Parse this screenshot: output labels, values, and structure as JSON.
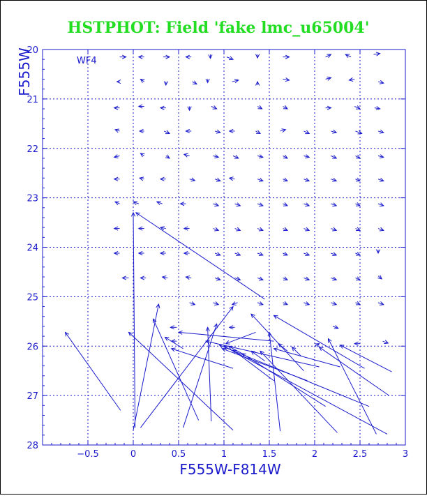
{
  "chart_data": {
    "type": "vector-field",
    "title": "HSTPHOT: Field 'fake lmc_u65004'",
    "xlabel": "F555W-F814W",
    "ylabel": "F555W",
    "panel_label": "WF4",
    "xlim": [
      -1.0,
      3.0
    ],
    "ylim": [
      28.0,
      20.0
    ],
    "y_inverted": true,
    "grid": true,
    "x_ticks": [
      -0.5,
      0,
      0.5,
      1,
      1.5,
      2,
      2.5,
      3
    ],
    "x_tick_labels": [
      "−0.5",
      "0",
      "0.5",
      "1",
      "1.5",
      "2",
      "2.5",
      "3"
    ],
    "y_ticks": [
      20,
      21,
      22,
      23,
      24,
      25,
      26,
      27,
      28
    ],
    "y_tick_labels": [
      "20",
      "21",
      "22",
      "23",
      "24",
      "25",
      "26",
      "27",
      "28"
    ],
    "colors": {
      "title": "#22dd22",
      "axes": "#1a1acc",
      "grid": "#1a1acc",
      "vectors": "#1a1acc",
      "background": "#ffffff"
    },
    "vectors_note": "each vector runs from the input (true) star to the recovered (measured) point; arrowhead at the recovered point",
    "vectors": [
      {
        "x0": -0.15,
        "y0": 20.15,
        "x1": -0.08,
        "y1": 20.15
      },
      {
        "x0": 0.12,
        "y0": 20.15,
        "x1": 0.06,
        "y1": 20.15
      },
      {
        "x0": 0.33,
        "y0": 20.15,
        "x1": 0.4,
        "y1": 20.15
      },
      {
        "x0": 0.64,
        "y0": 20.15,
        "x1": 0.58,
        "y1": 20.15
      },
      {
        "x0": 0.85,
        "y0": 20.1,
        "x1": 0.85,
        "y1": 20.18
      },
      {
        "x0": 1.03,
        "y0": 20.15,
        "x1": 1.1,
        "y1": 20.2
      },
      {
        "x0": 1.37,
        "y0": 20.1,
        "x1": 1.37,
        "y1": 20.17
      },
      {
        "x0": 1.65,
        "y0": 20.15,
        "x1": 1.72,
        "y1": 20.15
      },
      {
        "x0": 2.12,
        "y0": 20.15,
        "x1": 2.18,
        "y1": 20.1
      },
      {
        "x0": 2.4,
        "y0": 20.15,
        "x1": 2.34,
        "y1": 20.1
      },
      {
        "x0": 2.65,
        "y0": 20.1,
        "x1": 2.72,
        "y1": 20.08
      },
      {
        "x0": -0.15,
        "y0": 20.65,
        "x1": -0.18,
        "y1": 20.65
      },
      {
        "x0": 0.12,
        "y0": 20.65,
        "x1": 0.08,
        "y1": 20.6
      },
      {
        "x0": 0.36,
        "y0": 20.65,
        "x1": 0.36,
        "y1": 20.72
      },
      {
        "x0": 0.65,
        "y0": 20.65,
        "x1": 0.7,
        "y1": 20.7
      },
      {
        "x0": 0.82,
        "y0": 20.6,
        "x1": 0.82,
        "y1": 20.67
      },
      {
        "x0": 1.09,
        "y0": 20.65,
        "x1": 1.16,
        "y1": 20.62
      },
      {
        "x0": 1.37,
        "y0": 20.72,
        "x1": 1.37,
        "y1": 20.65
      },
      {
        "x0": 1.65,
        "y0": 20.6,
        "x1": 1.72,
        "y1": 20.62
      },
      {
        "x0": 2.12,
        "y0": 20.6,
        "x1": 2.18,
        "y1": 20.57
      },
      {
        "x0": 2.44,
        "y0": 20.6,
        "x1": 2.38,
        "y1": 20.62
      },
      {
        "x0": 2.7,
        "y0": 20.65,
        "x1": 2.76,
        "y1": 20.68
      },
      {
        "x0": -0.15,
        "y0": 21.18,
        "x1": -0.21,
        "y1": 21.18
      },
      {
        "x0": 0.12,
        "y0": 21.15,
        "x1": 0.06,
        "y1": 21.15
      },
      {
        "x0": 0.36,
        "y0": 21.18,
        "x1": 0.3,
        "y1": 21.18
      },
      {
        "x0": 0.62,
        "y0": 21.15,
        "x1": 0.62,
        "y1": 21.23
      },
      {
        "x0": 0.86,
        "y0": 21.15,
        "x1": 0.92,
        "y1": 21.2
      },
      {
        "x0": 1.37,
        "y0": 21.15,
        "x1": 1.42,
        "y1": 21.2
      },
      {
        "x0": 1.65,
        "y0": 21.15,
        "x1": 1.7,
        "y1": 21.2
      },
      {
        "x0": 2.12,
        "y0": 21.18,
        "x1": 2.18,
        "y1": 21.18
      },
      {
        "x0": 2.44,
        "y0": 21.15,
        "x1": 2.5,
        "y1": 21.2
      },
      {
        "x0": 2.66,
        "y0": 21.18,
        "x1": 2.72,
        "y1": 21.2
      },
      {
        "x0": -0.15,
        "y0": 21.65,
        "x1": -0.2,
        "y1": 21.62
      },
      {
        "x0": 0.12,
        "y0": 21.65,
        "x1": 0.07,
        "y1": 21.65
      },
      {
        "x0": 0.34,
        "y0": 21.65,
        "x1": 0.4,
        "y1": 21.7
      },
      {
        "x0": 0.64,
        "y0": 21.65,
        "x1": 0.58,
        "y1": 21.65
      },
      {
        "x0": 0.9,
        "y0": 21.65,
        "x1": 0.96,
        "y1": 21.68
      },
      {
        "x0": 1.12,
        "y0": 21.65,
        "x1": 1.06,
        "y1": 21.65
      },
      {
        "x0": 1.35,
        "y0": 21.65,
        "x1": 1.4,
        "y1": 21.7
      },
      {
        "x0": 1.62,
        "y0": 21.65,
        "x1": 1.68,
        "y1": 21.62
      },
      {
        "x0": 1.88,
        "y0": 21.65,
        "x1": 1.94,
        "y1": 21.7
      },
      {
        "x0": 2.18,
        "y0": 21.65,
        "x1": 2.24,
        "y1": 21.68
      },
      {
        "x0": 2.45,
        "y0": 21.65,
        "x1": 2.52,
        "y1": 21.7
      },
      {
        "x0": 2.7,
        "y0": 21.65,
        "x1": 2.76,
        "y1": 21.68
      },
      {
        "x0": -0.15,
        "y0": 22.15,
        "x1": -0.21,
        "y1": 22.18
      },
      {
        "x0": 0.12,
        "y0": 22.15,
        "x1": 0.08,
        "y1": 22.1
      },
      {
        "x0": 0.36,
        "y0": 22.15,
        "x1": 0.4,
        "y1": 22.2
      },
      {
        "x0": 0.62,
        "y0": 22.15,
        "x1": 0.56,
        "y1": 22.12
      },
      {
        "x0": 0.88,
        "y0": 22.15,
        "x1": 0.94,
        "y1": 22.18
      },
      {
        "x0": 1.1,
        "y0": 22.15,
        "x1": 1.16,
        "y1": 22.2
      },
      {
        "x0": 1.37,
        "y0": 22.15,
        "x1": 1.43,
        "y1": 22.18
      },
      {
        "x0": 1.65,
        "y0": 22.15,
        "x1": 1.7,
        "y1": 22.2
      },
      {
        "x0": 1.88,
        "y0": 22.15,
        "x1": 1.94,
        "y1": 22.18
      },
      {
        "x0": 2.18,
        "y0": 22.15,
        "x1": 2.24,
        "y1": 22.2
      },
      {
        "x0": 2.45,
        "y0": 22.15,
        "x1": 2.5,
        "y1": 22.2
      },
      {
        "x0": 2.7,
        "y0": 22.15,
        "x1": 2.76,
        "y1": 22.18
      },
      {
        "x0": -0.15,
        "y0": 22.62,
        "x1": -0.21,
        "y1": 22.62
      },
      {
        "x0": 0.12,
        "y0": 22.62,
        "x1": 0.07,
        "y1": 22.6
      },
      {
        "x0": 0.36,
        "y0": 22.62,
        "x1": 0.3,
        "y1": 22.62
      },
      {
        "x0": 0.62,
        "y0": 22.62,
        "x1": 0.68,
        "y1": 22.65
      },
      {
        "x0": 0.9,
        "y0": 22.62,
        "x1": 0.96,
        "y1": 22.66
      },
      {
        "x0": 1.12,
        "y0": 22.62,
        "x1": 1.06,
        "y1": 22.6
      },
      {
        "x0": 1.37,
        "y0": 22.62,
        "x1": 1.43,
        "y1": 22.66
      },
      {
        "x0": 1.65,
        "y0": 22.62,
        "x1": 1.7,
        "y1": 22.66
      },
      {
        "x0": 1.88,
        "y0": 22.62,
        "x1": 1.94,
        "y1": 22.66
      },
      {
        "x0": 2.18,
        "y0": 22.62,
        "x1": 2.24,
        "y1": 22.66
      },
      {
        "x0": 2.45,
        "y0": 22.62,
        "x1": 2.5,
        "y1": 22.66
      },
      {
        "x0": 2.7,
        "y0": 22.62,
        "x1": 2.76,
        "y1": 22.66
      },
      {
        "x0": -0.15,
        "y0": 23.12,
        "x1": -0.2,
        "y1": 23.08
      },
      {
        "x0": 0.06,
        "y0": 23.12,
        "x1": 0.0,
        "y1": 23.08
      },
      {
        "x0": 0.32,
        "y0": 23.12,
        "x1": 0.26,
        "y1": 23.08
      },
      {
        "x0": 0.58,
        "y0": 23.12,
        "x1": 0.52,
        "y1": 23.12
      },
      {
        "x0": 0.88,
        "y0": 23.12,
        "x1": 0.94,
        "y1": 23.16
      },
      {
        "x0": 1.12,
        "y0": 23.12,
        "x1": 1.18,
        "y1": 23.16
      },
      {
        "x0": 1.37,
        "y0": 23.12,
        "x1": 1.43,
        "y1": 23.16
      },
      {
        "x0": 1.65,
        "y0": 23.12,
        "x1": 1.7,
        "y1": 23.16
      },
      {
        "x0": 1.88,
        "y0": 23.12,
        "x1": 1.94,
        "y1": 23.16
      },
      {
        "x0": 2.18,
        "y0": 23.12,
        "x1": 2.24,
        "y1": 23.16
      },
      {
        "x0": 2.45,
        "y0": 23.12,
        "x1": 2.5,
        "y1": 23.16
      },
      {
        "x0": 2.7,
        "y0": 23.12,
        "x1": 2.76,
        "y1": 23.16
      },
      {
        "x0": -0.15,
        "y0": 23.62,
        "x1": -0.21,
        "y1": 23.62
      },
      {
        "x0": 0.12,
        "y0": 23.62,
        "x1": 0.06,
        "y1": 23.62
      },
      {
        "x0": 0.36,
        "y0": 23.62,
        "x1": 0.3,
        "y1": 23.6
      },
      {
        "x0": 0.62,
        "y0": 23.62,
        "x1": 0.56,
        "y1": 23.62
      },
      {
        "x0": 0.88,
        "y0": 23.62,
        "x1": 0.94,
        "y1": 23.66
      },
      {
        "x0": 1.12,
        "y0": 23.62,
        "x1": 1.18,
        "y1": 23.66
      },
      {
        "x0": 1.37,
        "y0": 23.62,
        "x1": 1.43,
        "y1": 23.66
      },
      {
        "x0": 1.65,
        "y0": 23.62,
        "x1": 1.7,
        "y1": 23.66
      },
      {
        "x0": 1.88,
        "y0": 23.62,
        "x1": 1.94,
        "y1": 23.66
      },
      {
        "x0": 2.18,
        "y0": 23.62,
        "x1": 2.24,
        "y1": 23.66
      },
      {
        "x0": 2.45,
        "y0": 23.62,
        "x1": 2.5,
        "y1": 23.66
      },
      {
        "x0": 2.7,
        "y0": 23.62,
        "x1": 2.76,
        "y1": 23.66
      },
      {
        "x0": -0.15,
        "y0": 24.12,
        "x1": -0.21,
        "y1": 24.12
      },
      {
        "x0": 0.12,
        "y0": 24.12,
        "x1": 0.06,
        "y1": 24.12
      },
      {
        "x0": 0.36,
        "y0": 24.12,
        "x1": 0.3,
        "y1": 24.12
      },
      {
        "x0": 0.62,
        "y0": 24.12,
        "x1": 0.56,
        "y1": 24.12
      },
      {
        "x0": 0.9,
        "y0": 24.12,
        "x1": 0.96,
        "y1": 24.16
      },
      {
        "x0": 1.12,
        "y0": 24.12,
        "x1": 1.18,
        "y1": 24.16
      },
      {
        "x0": 1.37,
        "y0": 24.12,
        "x1": 1.43,
        "y1": 24.16
      },
      {
        "x0": 1.65,
        "y0": 24.12,
        "x1": 1.7,
        "y1": 24.16
      },
      {
        "x0": 1.88,
        "y0": 24.12,
        "x1": 1.94,
        "y1": 24.16
      },
      {
        "x0": 2.18,
        "y0": 24.12,
        "x1": 2.24,
        "y1": 24.16
      },
      {
        "x0": 2.45,
        "y0": 24.12,
        "x1": 2.5,
        "y1": 24.16
      },
      {
        "x0": 2.7,
        "y0": 24.05,
        "x1": 2.7,
        "y1": 24.12
      },
      {
        "x0": -0.05,
        "y0": 24.62,
        "x1": -0.12,
        "y1": 24.62
      },
      {
        "x0": 0.14,
        "y0": 24.62,
        "x1": 0.08,
        "y1": 24.62
      },
      {
        "x0": 0.38,
        "y0": 24.62,
        "x1": 0.32,
        "y1": 24.6
      },
      {
        "x0": 0.64,
        "y0": 24.62,
        "x1": 0.58,
        "y1": 24.6
      },
      {
        "x0": 0.9,
        "y0": 24.62,
        "x1": 0.96,
        "y1": 24.66
      },
      {
        "x0": 1.12,
        "y0": 24.62,
        "x1": 1.18,
        "y1": 24.66
      },
      {
        "x0": 1.37,
        "y0": 24.62,
        "x1": 1.43,
        "y1": 24.66
      },
      {
        "x0": 1.65,
        "y0": 24.62,
        "x1": 1.7,
        "y1": 24.66
      },
      {
        "x0": 1.88,
        "y0": 24.62,
        "x1": 1.94,
        "y1": 24.66
      },
      {
        "x0": 2.18,
        "y0": 24.62,
        "x1": 2.24,
        "y1": 24.66
      },
      {
        "x0": 2.45,
        "y0": 24.62,
        "x1": 2.5,
        "y1": 24.66
      },
      {
        "x0": 2.7,
        "y0": 24.58,
        "x1": 2.74,
        "y1": 24.64
      },
      {
        "x0": 0.62,
        "y0": 25.12,
        "x1": 0.68,
        "y1": 25.16
      },
      {
        "x0": 0.88,
        "y0": 25.12,
        "x1": 0.94,
        "y1": 25.16
      },
      {
        "x0": 1.15,
        "y0": 25.12,
        "x1": 1.09,
        "y1": 25.16
      },
      {
        "x0": 1.37,
        "y0": 25.12,
        "x1": 1.43,
        "y1": 25.16
      },
      {
        "x0": 1.65,
        "y0": 25.12,
        "x1": 1.7,
        "y1": 25.16
      },
      {
        "x0": 1.88,
        "y0": 25.12,
        "x1": 1.94,
        "y1": 25.16
      },
      {
        "x0": 2.18,
        "y0": 25.12,
        "x1": 2.24,
        "y1": 25.16
      },
      {
        "x0": 2.45,
        "y0": 25.12,
        "x1": 2.5,
        "y1": 25.16
      },
      {
        "x0": 2.7,
        "y0": 25.12,
        "x1": 2.76,
        "y1": 25.16
      },
      {
        "x0": 2.75,
        "y0": 25.9,
        "x1": 2.81,
        "y1": 25.94
      },
      {
        "x0": 2.5,
        "y0": 25.95,
        "x1": 2.44,
        "y1": 25.95
      },
      {
        "x0": 2.2,
        "y0": 25.6,
        "x1": 2.26,
        "y1": 25.64
      },
      {
        "x0": 0.48,
        "y0": 25.62,
        "x1": 0.41,
        "y1": 25.62
      },
      {
        "x0": 0.48,
        "y0": 25.9,
        "x1": 0.42,
        "y1": 25.9
      },
      {
        "x0": 1.12,
        "y0": 25.62,
        "x1": 1.06,
        "y1": 25.62
      },
      {
        "x0": -0.14,
        "y0": 27.3,
        "x1": -0.75,
        "y1": 25.72
      },
      {
        "x0": 0.0,
        "y0": 27.7,
        "x1": 0.28,
        "y1": 25.15
      },
      {
        "x0": 0.02,
        "y0": 27.65,
        "x1": 0.0,
        "y1": 23.3
      },
      {
        "x0": 1.45,
        "y0": 25.05,
        "x1": 0.03,
        "y1": 23.3
      },
      {
        "x0": 0.08,
        "y0": 27.65,
        "x1": 1.1,
        "y1": 25.2
      },
      {
        "x0": 0.72,
        "y0": 27.5,
        "x1": 0.22,
        "y1": 25.45
      },
      {
        "x0": 1.1,
        "y0": 27.7,
        "x1": -0.05,
        "y1": 25.72
      },
      {
        "x0": 0.55,
        "y0": 27.65,
        "x1": 0.92,
        "y1": 25.55
      },
      {
        "x0": 0.86,
        "y0": 27.52,
        "x1": 0.82,
        "y1": 25.62
      },
      {
        "x0": 0.55,
        "y0": 26.05,
        "x1": 0.35,
        "y1": 25.82
      },
      {
        "x0": 1.1,
        "y0": 26.45,
        "x1": 0.42,
        "y1": 26.05
      },
      {
        "x0": 1.55,
        "y0": 25.9,
        "x1": 0.5,
        "y1": 25.72
      },
      {
        "x0": 1.62,
        "y0": 27.72,
        "x1": 1.5,
        "y1": 25.72
      },
      {
        "x0": 1.88,
        "y0": 26.5,
        "x1": 1.3,
        "y1": 25.35
      },
      {
        "x0": 2.05,
        "y0": 26.42,
        "x1": 0.8,
        "y1": 25.9
      },
      {
        "x0": 2.25,
        "y0": 27.75,
        "x1": 1.4,
        "y1": 26.1
      },
      {
        "x0": 2.28,
        "y0": 26.42,
        "x1": 1.55,
        "y1": 26.05
      },
      {
        "x0": 2.55,
        "y0": 26.45,
        "x1": 1.55,
        "y1": 25.38
      },
      {
        "x0": 2.68,
        "y0": 27.78,
        "x1": 2.15,
        "y1": 25.85
      },
      {
        "x0": 2.6,
        "y0": 27.22,
        "x1": 0.95,
        "y1": 25.98
      },
      {
        "x0": 2.8,
        "y0": 27.78,
        "x1": 1.0,
        "y1": 26.0
      },
      {
        "x0": 2.82,
        "y0": 27.0,
        "x1": 2.05,
        "y1": 26.02
      },
      {
        "x0": 2.85,
        "y0": 26.52,
        "x1": 2.28,
        "y1": 25.98
      },
      {
        "x0": 2.12,
        "y0": 27.22,
        "x1": 1.2,
        "y1": 26.15
      },
      {
        "x0": 1.92,
        "y0": 26.7,
        "x1": 0.98,
        "y1": 26.05
      },
      {
        "x0": 1.55,
        "y0": 26.7,
        "x1": 1.1,
        "y1": 26.08
      },
      {
        "x0": 1.35,
        "y0": 25.72,
        "x1": 1.02,
        "y1": 25.95
      },
      {
        "x0": 2.0,
        "y0": 26.0,
        "x1": 2.05,
        "y1": 25.95
      },
      {
        "x0": 1.85,
        "y0": 26.2,
        "x1": 1.75,
        "y1": 26.02
      },
      {
        "x0": 1.7,
        "y0": 26.1,
        "x1": 1.6,
        "y1": 25.95
      },
      {
        "x0": 1.45,
        "y0": 26.3,
        "x1": 1.3,
        "y1": 26.1
      },
      {
        "x0": 1.2,
        "y0": 26.15,
        "x1": 1.05,
        "y1": 26.0
      }
    ]
  }
}
